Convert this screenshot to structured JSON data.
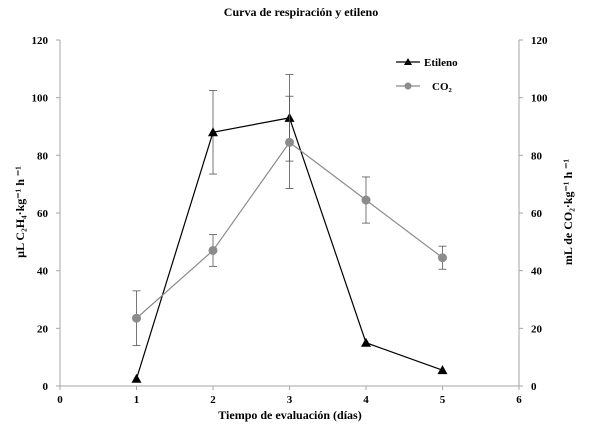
{
  "chart_data": {
    "type": "line",
    "title": "Curva de respiración y etileno",
    "xlabel": "Tiempo de evaluación (días)",
    "ylabel_left": "µL C₂H₄·kg⁻¹ h ⁻¹",
    "ylabel_right": "mL de CO₂·kg⁻¹ h ⁻¹",
    "xlim": [
      0,
      6
    ],
    "xticks": [
      "0",
      "1",
      "2",
      "3",
      "4",
      "5",
      "6"
    ],
    "ylim_left": [
      0,
      120
    ],
    "ylim_right": [
      0,
      120
    ],
    "yticks": [
      "0",
      "20",
      "40",
      "60",
      "80",
      "100",
      "120"
    ],
    "grid": false,
    "legend_position": "top-right",
    "series": [
      {
        "name": "Etileno",
        "axis": "left",
        "marker": "triangle",
        "color": "#000000",
        "x": [
          1,
          2,
          3,
          4,
          5
        ],
        "y": [
          2.5,
          88,
          93,
          15,
          5.5
        ],
        "error": [
          0,
          14.5,
          15,
          0,
          0
        ]
      },
      {
        "name": "CO₂",
        "axis": "right",
        "marker": "circle",
        "color": "#8c8c8c",
        "x": [
          1,
          2,
          3,
          4,
          5
        ],
        "y": [
          23.5,
          47,
          84.5,
          64.5,
          44.5
        ],
        "error": [
          9.5,
          5.5,
          16,
          8,
          4
        ]
      }
    ]
  }
}
